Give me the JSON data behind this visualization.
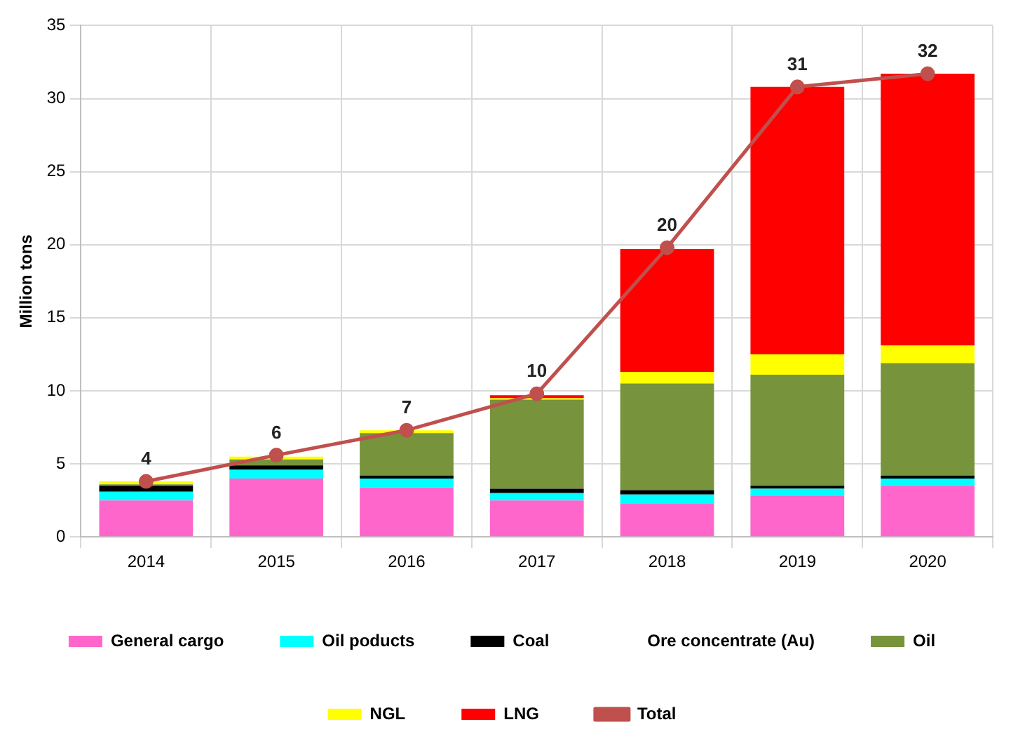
{
  "chart_data": {
    "type": "bar",
    "stacked": true,
    "ylabel": "Million tons",
    "categories": [
      "2014",
      "2015",
      "2016",
      "2017",
      "2018",
      "2019",
      "2020"
    ],
    "series": [
      {
        "name": "General cargo",
        "color": "#ff66cc",
        "values": [
          2.5,
          4.0,
          3.4,
          2.5,
          2.3,
          2.8,
          3.5
        ]
      },
      {
        "name": "Oil poducts",
        "color": "#00ffff",
        "values": [
          0.6,
          0.6,
          0.6,
          0.5,
          0.6,
          0.5,
          0.5
        ]
      },
      {
        "name": "Coal",
        "color": "#000000",
        "values": [
          0.4,
          0.3,
          0.2,
          0.3,
          0.3,
          0.2,
          0.2
        ]
      },
      {
        "name": "Ore concentrate (Au)",
        "values": [
          null,
          null,
          null,
          null,
          null,
          null,
          null
        ]
      },
      {
        "name": "Oil",
        "color": "#77933c",
        "values": [
          0.1,
          0.4,
          2.9,
          6.1,
          7.3,
          7.6,
          7.7
        ]
      },
      {
        "name": "NGL",
        "color": "#ffff00",
        "values": [
          0.2,
          0.2,
          0.2,
          0.1,
          0.8,
          1.4,
          1.2
        ]
      },
      {
        "name": "LNG",
        "color": "#ff0000",
        "values": [
          null,
          null,
          null,
          0.2,
          8.4,
          18.3,
          18.6
        ]
      },
      {
        "name": "Total",
        "type": "line",
        "color": "#c0504d",
        "marker": "circle",
        "values": [
          3.8,
          5.6,
          7.3,
          9.8,
          19.8,
          30.8,
          31.7
        ],
        "value_labels": [
          "4",
          "6",
          "7",
          "10",
          "20",
          "31",
          "32"
        ]
      }
    ],
    "ylim": [
      0,
      35
    ],
    "yticks": [
      0,
      5,
      10,
      15,
      20,
      25,
      30,
      35
    ],
    "grid": true,
    "legend": "bottom"
  }
}
